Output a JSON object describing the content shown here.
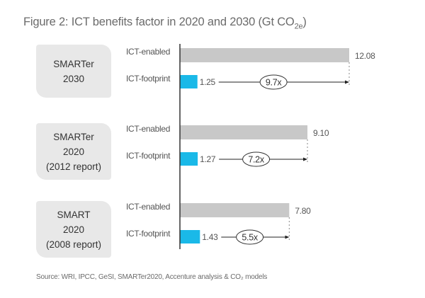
{
  "chart_data": {
    "type": "bar",
    "orientation": "horizontal",
    "title": "Figure 2: ICT benefits factor in 2020 and 2030 (Gt CO",
    "title_subscript": "2e",
    "title_suffix": ")",
    "unit": "Gt CO2e",
    "source": "Source: WRI, IPCC, GeSI, SMARTer2020, Accenture analysis & CO₂ models",
    "series_labels": [
      "ICT-enabled",
      "ICT-footprint"
    ],
    "colors": {
      "ICT-enabled": "#c8c8c8",
      "ICT-footprint": "#1ab9e8"
    },
    "groups": [
      {
        "label_lines": [
          "SMARTer",
          "2030"
        ],
        "enabled": 12.08,
        "enabled_label": "12.08",
        "footprint": 1.25,
        "footprint_label": "1.25",
        "factor_label": "9.7x"
      },
      {
        "label_lines": [
          "SMARTer",
          "2020",
          "(2012 report)"
        ],
        "enabled": 9.1,
        "enabled_label": "9.10",
        "footprint": 1.27,
        "footprint_label": "1.27",
        "factor_label": "7.2x"
      },
      {
        "label_lines": [
          "SMART",
          "2020",
          "(2008 report)"
        ],
        "enabled": 7.8,
        "enabled_label": "7.80",
        "footprint": 1.43,
        "footprint_label": "1.43",
        "factor_label": "5.5x"
      }
    ],
    "xlim": [
      0,
      12.08
    ],
    "grid": false,
    "legend": "none"
  }
}
